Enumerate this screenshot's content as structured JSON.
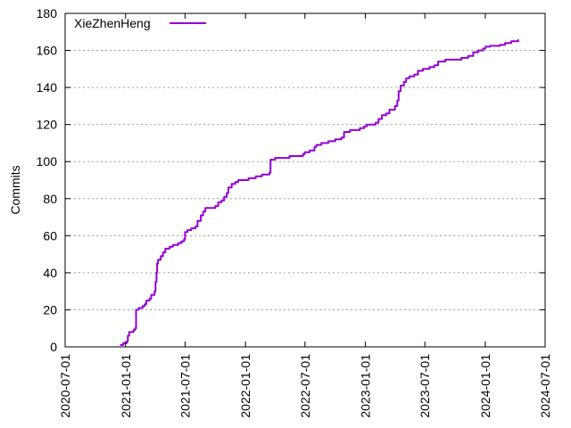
{
  "chart_data": {
    "type": "line",
    "ylabel": "Commits",
    "xlabel": "",
    "title": "",
    "ylim": [
      0,
      180
    ],
    "xlim": [
      "2020-07-01",
      "2024-07-01"
    ],
    "x_ticks": [
      "2020-07-01",
      "2021-01-01",
      "2021-07-01",
      "2022-01-01",
      "2022-07-01",
      "2023-01-01",
      "2023-07-01",
      "2024-01-01",
      "2024-07-01"
    ],
    "y_ticks": [
      0,
      20,
      40,
      60,
      80,
      100,
      120,
      140,
      160,
      180
    ],
    "grid": "horizontal-dotted",
    "legend_position": "top-left",
    "series": [
      {
        "name": "XieZhenHeng",
        "color": "#9400d3",
        "points": [
          [
            "2020-12-15",
            1
          ],
          [
            "2020-12-25",
            2
          ],
          [
            "2021-01-05",
            3
          ],
          [
            "2021-01-08",
            6
          ],
          [
            "2021-01-12",
            8
          ],
          [
            "2021-01-25",
            9
          ],
          [
            "2021-01-30",
            10
          ],
          [
            "2021-02-02",
            20
          ],
          [
            "2021-02-10",
            21
          ],
          [
            "2021-02-22",
            22
          ],
          [
            "2021-02-28",
            23
          ],
          [
            "2021-03-05",
            25
          ],
          [
            "2021-03-15",
            26
          ],
          [
            "2021-03-20",
            28
          ],
          [
            "2021-03-30",
            30
          ],
          [
            "2021-04-02",
            35
          ],
          [
            "2021-04-05",
            40
          ],
          [
            "2021-04-07",
            45
          ],
          [
            "2021-04-10",
            47
          ],
          [
            "2021-04-18",
            49
          ],
          [
            "2021-04-25",
            51
          ],
          [
            "2021-05-02",
            53
          ],
          [
            "2021-05-15",
            54
          ],
          [
            "2021-05-25",
            55
          ],
          [
            "2021-06-10",
            56
          ],
          [
            "2021-06-20",
            57
          ],
          [
            "2021-06-28",
            58
          ],
          [
            "2021-07-01",
            62
          ],
          [
            "2021-07-08",
            63
          ],
          [
            "2021-07-20",
            64
          ],
          [
            "2021-08-02",
            65
          ],
          [
            "2021-08-08",
            68
          ],
          [
            "2021-08-18",
            71
          ],
          [
            "2021-08-25",
            73
          ],
          [
            "2021-09-01",
            75
          ],
          [
            "2021-10-01",
            76
          ],
          [
            "2021-10-10",
            78
          ],
          [
            "2021-10-20",
            79
          ],
          [
            "2021-10-28",
            81
          ],
          [
            "2021-11-05",
            83
          ],
          [
            "2021-11-10",
            86
          ],
          [
            "2021-11-20",
            88
          ],
          [
            "2021-12-01",
            89
          ],
          [
            "2021-12-10",
            90
          ],
          [
            "2022-01-10",
            91
          ],
          [
            "2022-02-01",
            92
          ],
          [
            "2022-02-20",
            93
          ],
          [
            "2022-03-15",
            94
          ],
          [
            "2022-03-18",
            101
          ],
          [
            "2022-04-01",
            102
          ],
          [
            "2022-05-15",
            103
          ],
          [
            "2022-06-25",
            104
          ],
          [
            "2022-06-30",
            105
          ],
          [
            "2022-07-15",
            106
          ],
          [
            "2022-07-30",
            108
          ],
          [
            "2022-08-05",
            109
          ],
          [
            "2022-08-20",
            110
          ],
          [
            "2022-09-10",
            111
          ],
          [
            "2022-10-01",
            112
          ],
          [
            "2022-10-20",
            113
          ],
          [
            "2022-10-28",
            116
          ],
          [
            "2022-11-15",
            117
          ],
          [
            "2022-12-15",
            118
          ],
          [
            "2022-12-28",
            119
          ],
          [
            "2023-01-05",
            120
          ],
          [
            "2023-02-01",
            121
          ],
          [
            "2023-02-10",
            123
          ],
          [
            "2023-02-20",
            125
          ],
          [
            "2023-03-05",
            126
          ],
          [
            "2023-03-15",
            128
          ],
          [
            "2023-04-01",
            130
          ],
          [
            "2023-04-08",
            133
          ],
          [
            "2023-04-12",
            138
          ],
          [
            "2023-04-18",
            141
          ],
          [
            "2023-04-28",
            143
          ],
          [
            "2023-05-05",
            145
          ],
          [
            "2023-05-15",
            146
          ],
          [
            "2023-05-30",
            147
          ],
          [
            "2023-06-10",
            149
          ],
          [
            "2023-06-25",
            150
          ],
          [
            "2023-07-15",
            151
          ],
          [
            "2023-07-30",
            152
          ],
          [
            "2023-08-10",
            154
          ],
          [
            "2023-09-01",
            155
          ],
          [
            "2023-10-20",
            156
          ],
          [
            "2023-11-10",
            157
          ],
          [
            "2023-11-25",
            159
          ],
          [
            "2023-12-10",
            160
          ],
          [
            "2023-12-25",
            161
          ],
          [
            "2024-01-01",
            162
          ],
          [
            "2024-01-15",
            162.5
          ],
          [
            "2024-02-15",
            163
          ],
          [
            "2024-03-01",
            164
          ],
          [
            "2024-03-20",
            165
          ],
          [
            "2024-04-10",
            166
          ]
        ]
      }
    ]
  }
}
